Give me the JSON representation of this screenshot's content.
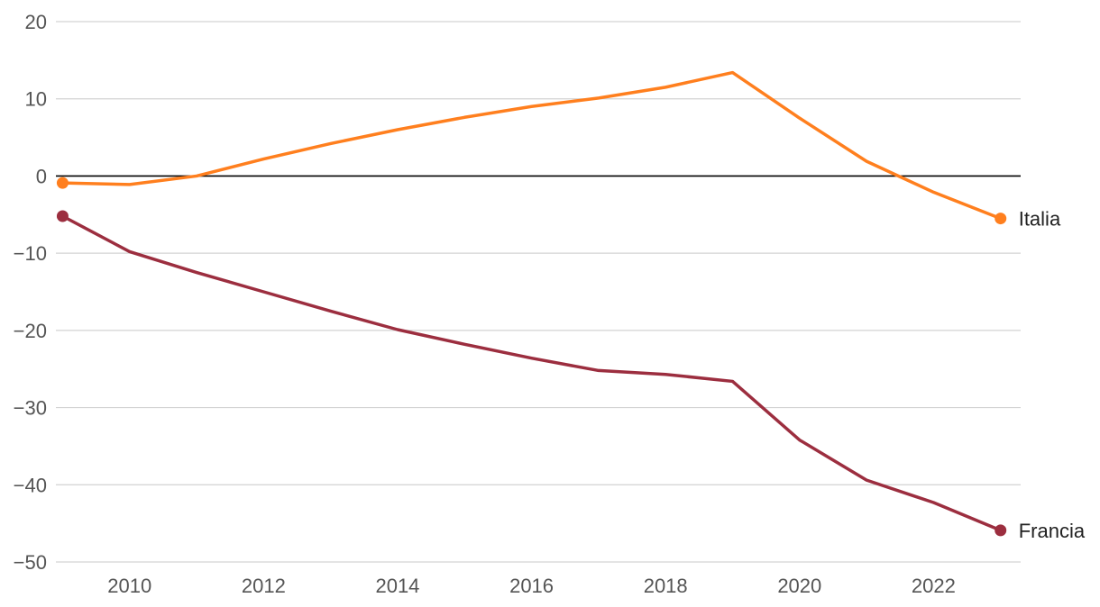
{
  "chart_data": {
    "type": "line",
    "title": "",
    "xlabel": "",
    "ylabel": "",
    "xlim": [
      2008.9,
      2023.3
    ],
    "ylim": [
      -50,
      20
    ],
    "y_ticks": [
      20,
      10,
      0,
      -10,
      -20,
      -30,
      -40,
      -50
    ],
    "x_ticks": [
      2010,
      2012,
      2014,
      2016,
      2018,
      2020,
      2022
    ],
    "grid": true,
    "legend": "direct labels at line ends",
    "zero_line": true,
    "x": [
      2009,
      2010,
      2011,
      2012,
      2013,
      2014,
      2015,
      2016,
      2017,
      2018,
      2019,
      2020,
      2021,
      2022,
      2023
    ],
    "series": [
      {
        "name": "Italia",
        "color": "#ff7f1e",
        "values": [
          -0.9,
          -1.1,
          0.0,
          2.2,
          4.2,
          6.0,
          7.6,
          9.0,
          10.1,
          11.5,
          13.4,
          7.5,
          1.9,
          -2.1,
          -5.5
        ]
      },
      {
        "name": "Francia",
        "color": "#9c2e3f",
        "values": [
          -5.2,
          -9.8,
          -12.5,
          -15.0,
          -17.5,
          -19.9,
          -21.8,
          -23.6,
          -25.2,
          -25.7,
          -26.6,
          -34.2,
          -39.4,
          -42.3,
          -45.9
        ]
      }
    ]
  }
}
